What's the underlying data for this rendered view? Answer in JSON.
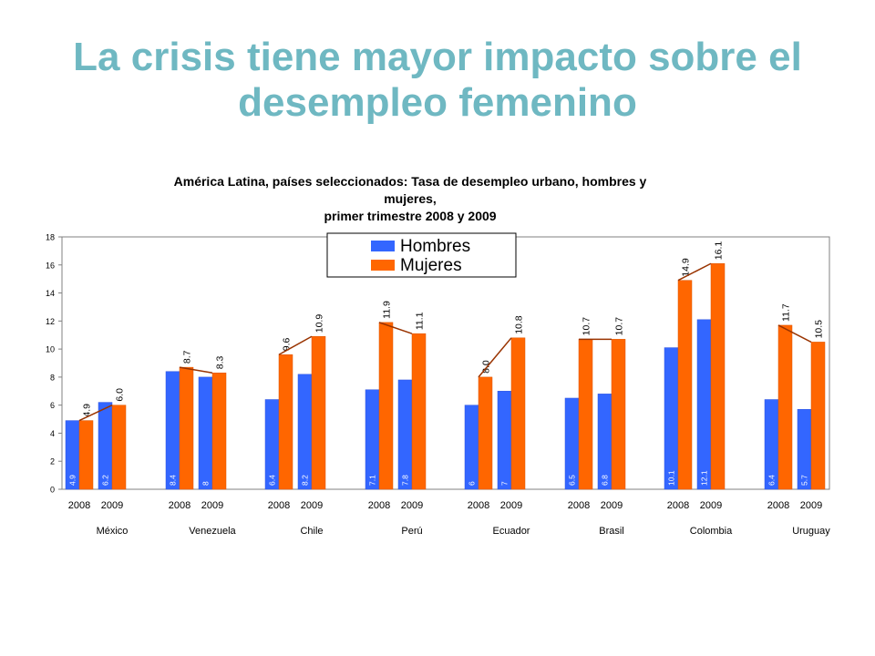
{
  "slide": {
    "title_line1": "La crisis tiene mayor impacto sobre el",
    "title_line2": "desempleo femenino"
  },
  "chart_data": {
    "type": "bar",
    "title_lines": [
      "América Latina, países seleccionados: Tasa de desempleo urbano, hombres y",
      "mujeres,",
      "primer trimestre 2008 y 2009"
    ],
    "ylim": [
      0,
      18
    ],
    "y_ticks": [
      "0",
      "2",
      "4",
      "6",
      "8",
      "10",
      "12",
      "14",
      "16",
      "18"
    ],
    "groups": [
      "México",
      "Venezuela",
      "Chile",
      "Perú",
      "Ecuador",
      "Brasil",
      "Colombia",
      "Uruguay"
    ],
    "years": [
      "2008",
      "2009"
    ],
    "series": [
      {
        "name": "Hombres",
        "color": "#3366ff",
        "values": [
          4.9,
          6.2,
          8.4,
          8.0,
          6.4,
          8.2,
          7.1,
          7.8,
          6.0,
          7.0,
          6.5,
          6.8,
          10.1,
          12.1,
          6.4,
          5.7
        ],
        "labels": [
          "4.9",
          "6.2",
          "8.4",
          "8",
          "6.4",
          "8.2",
          "7.1",
          "7.8",
          "6",
          "7",
          "6.5",
          "6.8",
          "10.1",
          "12.1",
          "6.4",
          "5.7"
        ]
      },
      {
        "name": "Mujeres",
        "color": "#ff6600",
        "values": [
          4.9,
          6.0,
          8.7,
          8.3,
          9.6,
          10.9,
          11.9,
          11.1,
          8.0,
          10.8,
          10.7,
          10.7,
          14.9,
          16.1,
          11.7,
          10.5
        ],
        "labels": [
          "4.9",
          "6.0",
          "8.7",
          "8.3",
          "9.6",
          "10.9",
          "11.9",
          "11.1",
          "8.0",
          "10.8",
          "10.7",
          "10.7",
          "14.9",
          "16.1",
          "11.7",
          "10.5"
        ]
      }
    ],
    "trend_line_color": "#993300",
    "legend_position": "top-center"
  }
}
